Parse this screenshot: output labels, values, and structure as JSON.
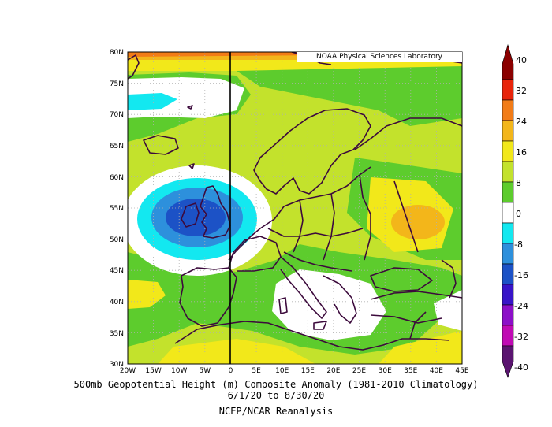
{
  "map": {
    "attribution": "NOAA Physical Sciences Laboratory",
    "lat_labels": [
      "80N",
      "75N",
      "70N",
      "65N",
      "60N",
      "55N",
      "50N",
      "45N",
      "40N",
      "35N",
      "30N"
    ],
    "lon_labels": [
      "20W",
      "15W",
      "10W",
      "5W",
      "0",
      "5E",
      "10E",
      "15E",
      "20E",
      "25E",
      "30E",
      "35E",
      "40E",
      "45E"
    ],
    "extent": {
      "lon_min": -20,
      "lon_max": 45,
      "lat_min": 30,
      "lat_max": 80
    }
  },
  "colorbar": {
    "labels": [
      "40",
      "32",
      "24",
      "16",
      "8",
      "0",
      "-8",
      "-16",
      "-24",
      "-32",
      "-40"
    ],
    "colors": [
      "#8b0000",
      "#e8240b",
      "#f27c17",
      "#f3b61a",
      "#f2e81a",
      "#c3e22c",
      "#5dcc2d",
      "#ffffff",
      "#13e8f0",
      "#2d90dc",
      "#1c52c6",
      "#3814c8",
      "#8c0fc8",
      "#c00ab4",
      "#5a1470"
    ]
  },
  "captions": {
    "line1": "500mb Geopotential Height (m) Composite Anomaly (1981-2010 Climatology)",
    "line2": "6/1/20 to 8/30/20",
    "line3": "NCEP/NCAR Reanalysis"
  }
}
